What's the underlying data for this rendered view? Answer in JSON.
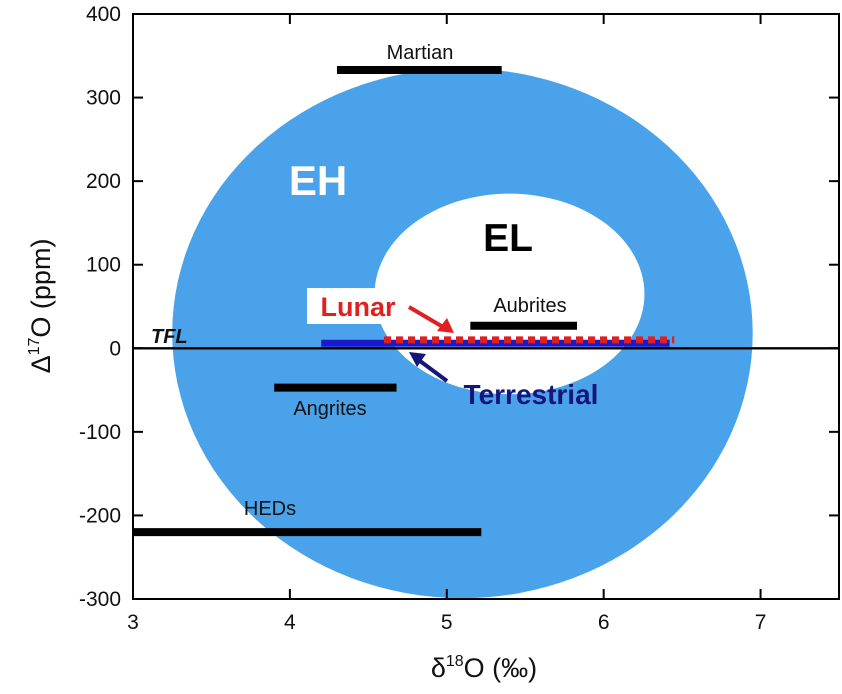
{
  "chart_data": {
    "type": "scatter",
    "xlim": [
      3,
      7.5
    ],
    "ylim": [
      -300,
      400
    ],
    "x_ticks": [
      3,
      4,
      5,
      6,
      7
    ],
    "y_ticks": [
      -300,
      -200,
      -100,
      0,
      100,
      200,
      300,
      400
    ],
    "xlabel": {
      "symbol": "δ",
      "superscript": "18",
      "text": "O (‰)"
    },
    "ylabel": {
      "symbol": "Δ",
      "superscript": "17",
      "text": "O (ppm)"
    },
    "grid": false,
    "regions": [
      {
        "label": "EH",
        "color": "#4aa3ea",
        "label_color": "#ffffff",
        "center": [
          5.1,
          18
        ],
        "semi_axes": [
          1.85,
          317
        ]
      },
      {
        "label": "EL",
        "color": "#ffffff",
        "label_color": "#000000",
        "center": [
          5.4,
          65
        ],
        "semi_axes": [
          0.86,
          120
        ]
      }
    ],
    "reference_line": {
      "label": "TFL",
      "y": 0
    },
    "ranges": [
      {
        "label": "Martian",
        "x": [
          4.3,
          5.35
        ],
        "y": 333,
        "color": "#000000"
      },
      {
        "label": "Aubrites",
        "x": [
          5.15,
          5.83
        ],
        "y": 27,
        "color": "#000000"
      },
      {
        "label": "Angrites",
        "x": [
          3.9,
          4.68
        ],
        "y": -47,
        "color": "#000000"
      },
      {
        "label": "HEDs",
        "x": [
          3.0,
          5.22
        ],
        "y": -220,
        "color": "#000000"
      },
      {
        "label": "Terrestrial",
        "x": [
          4.2,
          6.42
        ],
        "y": 6,
        "color": "#1a1acd"
      },
      {
        "label": "Lunar",
        "x": [
          4.6,
          6.45
        ],
        "y": 10,
        "color": "#e02020"
      }
    ],
    "annotations": [
      {
        "label": "Lunar",
        "color": "#e02020"
      },
      {
        "label": "Terrestrial",
        "color": "#15157a"
      }
    ]
  }
}
